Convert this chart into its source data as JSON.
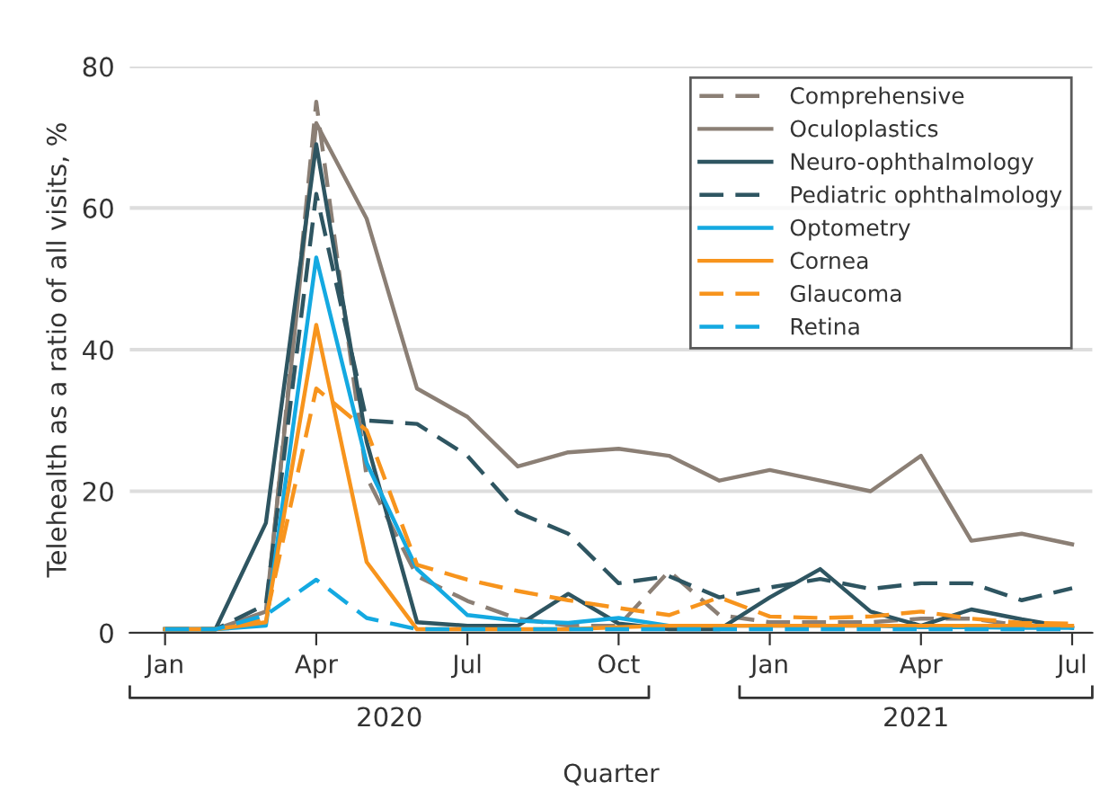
{
  "chart_data": {
    "type": "line",
    "xlabel": "Quarter",
    "ylabel": "Telehealth as a ratio of all visits, %",
    "categories": [
      "Jan",
      null,
      null,
      "Apr",
      null,
      null,
      "Jul",
      null,
      null,
      "Oct",
      null,
      null,
      "Jan",
      null,
      null,
      "Apr",
      null,
      null,
      "Jul"
    ],
    "annotations": [
      "2020",
      "2021"
    ],
    "ylim": [
      0,
      80
    ],
    "yticks": [
      0,
      20,
      40,
      60,
      80
    ],
    "grid": "y",
    "legend": "top right",
    "series": [
      {
        "name": "Comprehensive",
        "color": "#8b7f75",
        "line_style": "dashed",
        "values": [
          0.5,
          0.5,
          2,
          75,
          22,
          8,
          4.5,
          2,
          1,
          1,
          8.7,
          2.5,
          1.5,
          1.5,
          1.5,
          2,
          2,
          1,
          1
        ]
      },
      {
        "name": "Oculoplastics",
        "color": "#8b7f75",
        "line_style": "solid",
        "values": [
          0.5,
          0.5,
          3,
          72,
          58.5,
          34.5,
          30.5,
          23.5,
          25.5,
          26,
          25,
          21.5,
          23,
          21.5,
          20,
          25,
          13,
          14,
          12.5
        ]
      },
      {
        "name": "Neuro-ophthalmology",
        "color": "#2e5561",
        "line_style": "solid",
        "values": [
          0.5,
          0.5,
          15.5,
          69,
          27,
          1.5,
          1,
          1,
          5.5,
          1.3,
          0.5,
          0.5,
          5,
          9,
          3,
          1,
          3.3,
          1.9,
          0.7
        ]
      },
      {
        "name": "Pediatric ophthalmology",
        "color": "#2e5561",
        "line_style": "dashed",
        "values": [
          0.5,
          0.5,
          4,
          62,
          30,
          29.5,
          25,
          17,
          14,
          7,
          8,
          5,
          6.4,
          7.6,
          6.2,
          7,
          7,
          4.6,
          6.3
        ]
      },
      {
        "name": "Optometry",
        "color": "#14a9e1",
        "line_style": "solid",
        "values": [
          0.5,
          0.5,
          1,
          53,
          24,
          9,
          2.5,
          1.7,
          1.4,
          2.1,
          1,
          1,
          1,
          1,
          1,
          0.8,
          0.8,
          0.7,
          0.7
        ]
      },
      {
        "name": "Cornea",
        "color": "#f7941d",
        "line_style": "solid",
        "values": [
          0.5,
          0.5,
          1.5,
          43.5,
          10,
          0.5,
          0.5,
          0.5,
          0.5,
          0.8,
          1,
          1,
          1,
          1,
          1,
          1,
          1,
          1,
          1
        ]
      },
      {
        "name": "Glaucoma",
        "color": "#f7941d",
        "line_style": "dashed",
        "values": [
          0.5,
          0.5,
          2,
          34.5,
          28.6,
          9.6,
          7.5,
          5.9,
          4.6,
          3.5,
          2.5,
          5,
          2.3,
          2.1,
          2.3,
          3,
          2,
          1.4,
          1.3
        ]
      },
      {
        "name": "Retina",
        "color": "#14a9e1",
        "line_style": "dashed",
        "values": [
          0.5,
          0.5,
          2.5,
          7.5,
          2.1,
          0.5,
          0.5,
          0.5,
          0.5,
          0.5,
          0.5,
          0.5,
          0.5,
          0.5,
          0.5,
          0.5,
          0.5,
          0.5,
          0.5
        ]
      }
    ]
  }
}
